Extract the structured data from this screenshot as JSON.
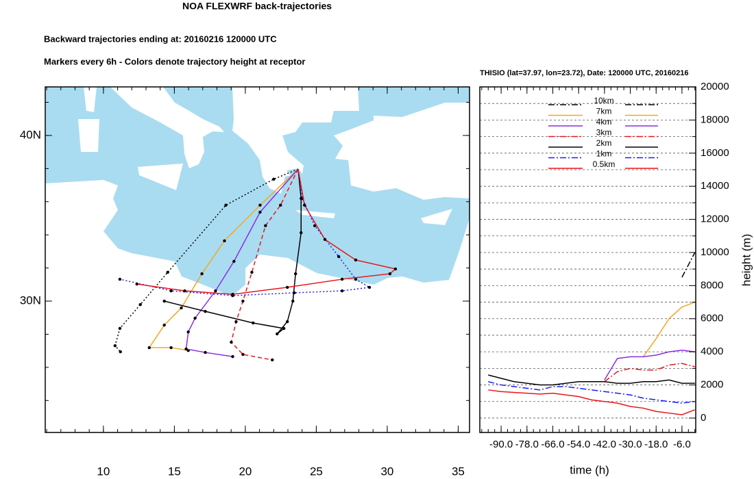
{
  "chart_data": [
    {
      "type": "trajectory-map",
      "title": "NOA FLEXWRF back-trajectories",
      "subtitles": [
        "Backward trajectories ending at: 20160216  120000 UTC",
        "Markers every 6h - Colors denote trajectory height at receptor"
      ],
      "xlim": [
        5.9,
        35.8
      ],
      "ylim": [
        22.07,
        42.93
      ],
      "xticks": [
        10,
        15,
        20,
        25,
        30,
        35
      ],
      "yticks": [
        {
          "value": 30,
          "label": "30N"
        },
        {
          "value": 40,
          "label": "40N"
        }
      ],
      "series": [
        {
          "color": "#000000",
          "dash": "dotted",
          "x": [
            23.72,
            22.0,
            18.63,
            14.53,
            12.6,
            11.16,
            10.82,
            11.2
          ],
          "y": [
            37.97,
            37.36,
            35.79,
            31.74,
            29.79,
            28.35,
            27.31,
            26.94
          ]
        },
        {
          "color": "#f5a623",
          "dash": "solid",
          "x": [
            23.72,
            21.04,
            18.53,
            16.94,
            15.49,
            14.29,
            13.23,
            14.77,
            15.98
          ],
          "y": [
            37.97,
            35.79,
            33.64,
            31.65,
            29.59,
            28.55,
            27.19,
            27.19,
            27.02
          ]
        },
        {
          "color": "#8a2be2",
          "dash": "solid",
          "x": [
            23.72,
            21.04,
            19.2,
            17.9,
            16.46,
            15.98,
            15.83,
            17.18,
            19.11
          ],
          "y": [
            37.97,
            35.37,
            32.4,
            30.62,
            28.97,
            28.14,
            27.11,
            26.9,
            26.65
          ]
        },
        {
          "color": "#e8141a",
          "dash": "dashed",
          "x": [
            23.72,
            22.48,
            21.42,
            20.46,
            19.83,
            19.35,
            19.01,
            19.83,
            21.9
          ],
          "y": [
            37.97,
            35.79,
            34.55,
            31.74,
            30.0,
            28.76,
            27.52,
            26.78,
            26.45
          ]
        },
        {
          "color": "#000000",
          "dash": "solid",
          "x": [
            23.72,
            23.93,
            23.93,
            23.54,
            23.35,
            22.96,
            22.24,
            22.72,
            20.55,
            17.18,
            14.29
          ],
          "y": [
            37.97,
            36.2,
            34.13,
            31.65,
            30.0,
            28.76,
            28.02,
            28.35,
            28.68,
            29.38,
            30.0
          ]
        },
        {
          "color": "#1a1aff",
          "dash": "dotted",
          "x": [
            23.72,
            24.02,
            24.89,
            26.58,
            27.78,
            28.75,
            26.82,
            23.45,
            19.11,
            14.77,
            11.16
          ],
          "y": [
            37.97,
            36.2,
            34.55,
            32.69,
            31.32,
            30.83,
            30.62,
            30.5,
            30.33,
            30.62,
            31.32
          ]
        },
        {
          "color": "#e8141a",
          "dash": "solid",
          "x": [
            23.72,
            24.17,
            25.61,
            27.78,
            30.58,
            30.19,
            26.82,
            22.96,
            19.11,
            15.73,
            12.36
          ],
          "y": [
            37.97,
            35.79,
            33.72,
            32.48,
            31.94,
            31.65,
            31.32,
            30.83,
            30.41,
            30.62,
            31.03
          ]
        }
      ]
    },
    {
      "type": "line",
      "title": "THISIO (lat=37.97,  lon=23.72), Date: 120000 UTC, 20160216",
      "xlabel": "time (h)",
      "ylabel": "height (m)",
      "x": [
        -96,
        -90,
        -84,
        -78,
        -72,
        -66,
        -60,
        -54,
        -48,
        -42,
        -36,
        -30,
        -24,
        -18,
        -12,
        -6,
        0
      ],
      "xlim": [
        -99.9,
        0.4
      ],
      "ylim": [
        -870,
        20000
      ],
      "xticks": [
        {
          "value": -90,
          "label": "-90.0"
        },
        {
          "value": -78,
          "label": "-78.0"
        },
        {
          "value": -66,
          "label": "-66.0"
        },
        {
          "value": -54,
          "label": "-54.0"
        },
        {
          "value": -42,
          "label": "-42.0"
        },
        {
          "value": -30,
          "label": "-30.0"
        },
        {
          "value": -18,
          "label": "-18.0"
        },
        {
          "value": -6,
          "label": "-6.0"
        }
      ],
      "yticks": [
        0,
        2000,
        4000,
        6000,
        8000,
        10000,
        12000,
        14000,
        16000,
        18000,
        20000
      ],
      "grid": true,
      "series": [
        {
          "name": "10km",
          "color": "#000000",
          "dash": "dashdot",
          "values": [
            null,
            null,
            null,
            null,
            null,
            null,
            null,
            null,
            null,
            null,
            null,
            null,
            null,
            null,
            null,
            8500,
            10000
          ]
        },
        {
          "name": "7km",
          "color": "#f5a623",
          "dash": "solid",
          "values": [
            null,
            null,
            null,
            null,
            null,
            null,
            null,
            null,
            null,
            null,
            null,
            null,
            3700,
            4800,
            6000,
            6700,
            7000
          ]
        },
        {
          "name": "4km",
          "color": "#8a2be2",
          "dash": "solid",
          "values": [
            null,
            null,
            null,
            null,
            null,
            null,
            null,
            null,
            null,
            2300,
            3600,
            3700,
            3700,
            3800,
            4000,
            4100,
            4000
          ]
        },
        {
          "name": "3km",
          "color": "#e8141a",
          "dash": "dashdot",
          "values": [
            null,
            null,
            null,
            null,
            null,
            null,
            null,
            null,
            null,
            2200,
            2800,
            3000,
            2900,
            2900,
            3200,
            3300,
            3100
          ]
        },
        {
          "name": "2km",
          "color": "#000000",
          "dash": "solid",
          "values": [
            2600,
            2400,
            2200,
            2100,
            2000,
            2000,
            2100,
            2200,
            2200,
            2200,
            2100,
            2100,
            2200,
            2200,
            2300,
            2100,
            2100
          ]
        },
        {
          "name": "1km",
          "color": "#1a1aff",
          "dash": "dashdot",
          "values": [
            2200,
            2000,
            1900,
            1800,
            1700,
            1900,
            1900,
            1800,
            1700,
            1600,
            1500,
            1400,
            1200,
            1100,
            1000,
            900,
            1000
          ]
        },
        {
          "name": "0.5km",
          "color": "#e8141a",
          "dash": "solid",
          "values": [
            1700,
            1600,
            1550,
            1500,
            1450,
            1500,
            1400,
            1300,
            1100,
            1000,
            900,
            700,
            600,
            400,
            300,
            200,
            500
          ]
        }
      ]
    }
  ]
}
